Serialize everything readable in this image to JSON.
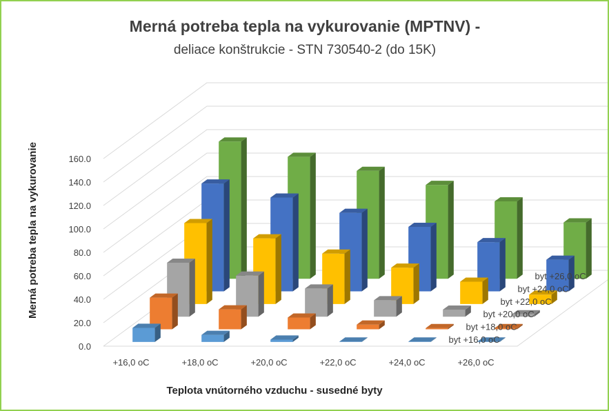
{
  "chart_data": {
    "type": "bar",
    "subtype": "3d-column",
    "title": "Merná potreba tepla na vykurovanie (MPTNV) -",
    "subtitle": "deliace konštrukcie - STN 730540-2 (do 15K)",
    "xlabel": "Teplota vnútorného vzduchu - susedné byty",
    "ylabel": "Merná potreba tepla na vykurovanie",
    "ylim": [
      0,
      160
    ],
    "y_ticks": [
      "0.0",
      "20.0",
      "40.0",
      "60.0",
      "80.0",
      "100.0",
      "120.0",
      "140.0",
      "160.0"
    ],
    "categories": [
      "+16,0 oC",
      "+18,0 oC",
      "+20,0 oC",
      "+22,0 oC",
      "+24,0 oC",
      "+26,0 oC"
    ],
    "grid": true,
    "series": [
      {
        "name": "byt +16,0 oC",
        "color": "#5b9bd5",
        "values": [
          12,
          6,
          2,
          0.3,
          0.3,
          0.3
        ]
      },
      {
        "name": "byt +18,0 oC",
        "color": "#ed7d31",
        "values": [
          27,
          17,
          10,
          4,
          1,
          1
        ]
      },
      {
        "name": "byt +20,0 oC",
        "color": "#a5a5a5",
        "values": [
          46,
          35,
          24,
          14,
          6,
          2
        ]
      },
      {
        "name": "byt +22,0 oC",
        "color": "#ffc000",
        "values": [
          69,
          56,
          43,
          31,
          19,
          8
        ]
      },
      {
        "name": "byt +24,0 oC",
        "color": "#4472c4",
        "values": [
          92,
          80,
          67,
          55,
          42,
          27
        ]
      },
      {
        "name": "byt +26,0 oC",
        "color": "#70ad47",
        "values": [
          117,
          104,
          92,
          80,
          66,
          48
        ]
      }
    ]
  }
}
